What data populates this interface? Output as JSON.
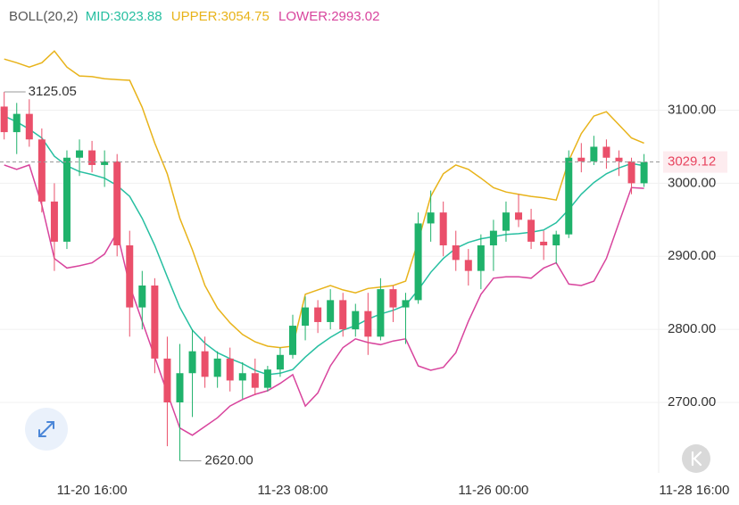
{
  "chart_data": {
    "type": "candlestick",
    "indicator": "BOLL(20,2)",
    "up_color": "#1fb26b",
    "down_color": "#ea4f6a",
    "x": [
      "11-19 12:00",
      "11-19 16:00",
      "11-19 20:00",
      "11-20 00:00",
      "11-20 04:00",
      "11-20 08:00",
      "11-20 12:00",
      "11-20 16:00",
      "11-20 20:00",
      "11-21 00:00",
      "11-21 04:00",
      "11-21 08:00",
      "11-21 12:00",
      "11-21 16:00",
      "11-21 20:00",
      "11-22 00:00",
      "11-22 04:00",
      "11-22 08:00",
      "11-22 12:00",
      "11-22 16:00",
      "11-22 20:00",
      "11-23 00:00",
      "11-23 04:00",
      "11-23 08:00",
      "11-23 12:00",
      "11-23 16:00",
      "11-23 20:00",
      "11-24 00:00",
      "11-24 04:00",
      "11-24 08:00",
      "11-24 12:00",
      "11-24 16:00",
      "11-24 20:00",
      "11-25 00:00",
      "11-25 04:00",
      "11-25 08:00",
      "11-25 12:00",
      "11-25 16:00",
      "11-25 20:00",
      "11-26 00:00",
      "11-26 04:00",
      "11-26 08:00",
      "11-26 12:00",
      "11-26 16:00",
      "11-26 20:00",
      "11-27 00:00",
      "11-27 04:00",
      "11-27 08:00",
      "11-27 12:00",
      "11-27 16:00",
      "11-27 20:00",
      "11-28 00:00"
    ],
    "open": [
      3105,
      3070,
      3095,
      3060,
      2975,
      2920,
      3035,
      3045,
      3025,
      3030,
      2915,
      2830,
      2860,
      2760,
      2700,
      2740,
      2770,
      2735,
      2760,
      2730,
      2740,
      2720,
      2745,
      2765,
      2805,
      2830,
      2810,
      2840,
      2800,
      2825,
      2790,
      2855,
      2830,
      2840,
      2945,
      2960,
      2915,
      2895,
      2880,
      2915,
      2935,
      2960,
      2950,
      2920,
      2915,
      2930,
      3035,
      3030,
      3050,
      3035,
      3030,
      3000
    ],
    "high": [
      3125.05,
      3110,
      3115,
      3075,
      3000,
      3045,
      3060,
      3058,
      3045,
      3040,
      2935,
      2880,
      2870,
      2790,
      2780,
      2800,
      2790,
      2770,
      2775,
      2755,
      2760,
      2750,
      2775,
      2820,
      2845,
      2840,
      2855,
      2850,
      2835,
      2850,
      2870,
      2860,
      2850,
      2960,
      2990,
      2975,
      2935,
      2910,
      2930,
      2950,
      2975,
      2985,
      2965,
      2935,
      2935,
      3045,
      3055,
      3065,
      3060,
      3045,
      3035,
      3040
    ],
    "low": [
      3060,
      3040,
      3050,
      2960,
      2880,
      2910,
      3010,
      3015,
      2995,
      2900,
      2790,
      2800,
      2740,
      2640,
      2620,
      2680,
      2720,
      2720,
      2715,
      2705,
      2710,
      2715,
      2735,
      2760,
      2785,
      2795,
      2800,
      2790,
      2790,
      2765,
      2785,
      2810,
      2780,
      2835,
      2920,
      2900,
      2880,
      2860,
      2855,
      2880,
      2920,
      2940,
      2910,
      2895,
      2890,
      2925,
      3015,
      3025,
      3020,
      3010,
      2985,
      2995
    ],
    "close": [
      3070,
      3095,
      3060,
      2975,
      2920,
      3035,
      3045,
      3025,
      3030,
      2915,
      2830,
      2860,
      2760,
      2700,
      2740,
      2770,
      2735,
      2760,
      2730,
      2740,
      2720,
      2745,
      2765,
      2805,
      2830,
      2810,
      2840,
      2800,
      2825,
      2790,
      2855,
      2830,
      2840,
      2945,
      2960,
      2915,
      2895,
      2880,
      2915,
      2935,
      2960,
      2950,
      2920,
      2915,
      2930,
      3035,
      3030,
      3050,
      3035,
      3030,
      3000,
      3029.12
    ],
    "series": [
      {
        "label": "MID:3023.88",
        "color": "#27bfa1",
        "values": [
          3092,
          3084,
          3074,
          3062,
          3037,
          3024,
          3016,
          3012,
          3007,
          2997,
          2982,
          2952,
          2915,
          2872,
          2830,
          2799,
          2781,
          2768,
          2760,
          2753,
          2744,
          2738,
          2740,
          2745,
          2762,
          2777,
          2789,
          2799,
          2805,
          2814,
          2821,
          2826,
          2833,
          2854,
          2878,
          2897,
          2911,
          2919,
          2924,
          2927,
          2930,
          2931,
          2933,
          2936,
          2946,
          2964,
          2985,
          3001,
          3013,
          3021,
          3027,
          3024
        ]
      },
      {
        "label": "UPPER:3054.75",
        "color": "#e8b31a",
        "values": [
          3170,
          3165,
          3159,
          3165,
          3181,
          3159,
          3147,
          3146,
          3143,
          3142,
          3141,
          3104,
          3055,
          3013,
          2952,
          2909,
          2860,
          2829,
          2809,
          2793,
          2783,
          2777,
          2775,
          2777,
          2848,
          2854,
          2860,
          2854,
          2850,
          2856,
          2858,
          2860,
          2866,
          2921,
          2982,
          3013,
          3025,
          3019,
          3007,
          2994,
          2988,
          2985,
          2982,
          2980,
          2977,
          3031,
          3068,
          3092,
          3098,
          3080,
          3062,
          3055
        ]
      },
      {
        "label": "LOWER:2993.02",
        "color": "#d8449d",
        "values": [
          3025,
          3019,
          3025,
          2970,
          2897,
          2884,
          2887,
          2891,
          2903,
          2933,
          2860,
          2811,
          2762,
          2713,
          2665,
          2655,
          2667,
          2679,
          2695,
          2704,
          2711,
          2716,
          2726,
          2738,
          2695,
          2713,
          2750,
          2775,
          2787,
          2782,
          2779,
          2784,
          2787,
          2750,
          2744,
          2748,
          2768,
          2811,
          2848,
          2870,
          2872,
          2872,
          2870,
          2884,
          2891,
          2862,
          2860,
          2866,
          2897,
          2946,
          2994,
          2993
        ]
      }
    ],
    "xlim": [
      "11-19 10:40",
      "11-28 04:40"
    ],
    "xticks": [
      "11-20 16:00",
      "11-23 08:00",
      "11-26 00:00",
      "11-28 16:00"
    ],
    "ylim": [
      2603.5,
      3250.9
    ],
    "yticks": [
      {
        "value": 2700,
        "label": "2700.00"
      },
      {
        "value": 2800,
        "label": "2800.00"
      },
      {
        "value": 2900,
        "label": "2900.00"
      },
      {
        "value": 3000,
        "label": "3000.00"
      },
      {
        "value": 3100,
        "label": "3100.00"
      }
    ],
    "grid": true,
    "max_label": 3125.05,
    "min_label": {
      "value": 2620,
      "label": "2620.00"
    },
    "last_price": 3029.12
  }
}
